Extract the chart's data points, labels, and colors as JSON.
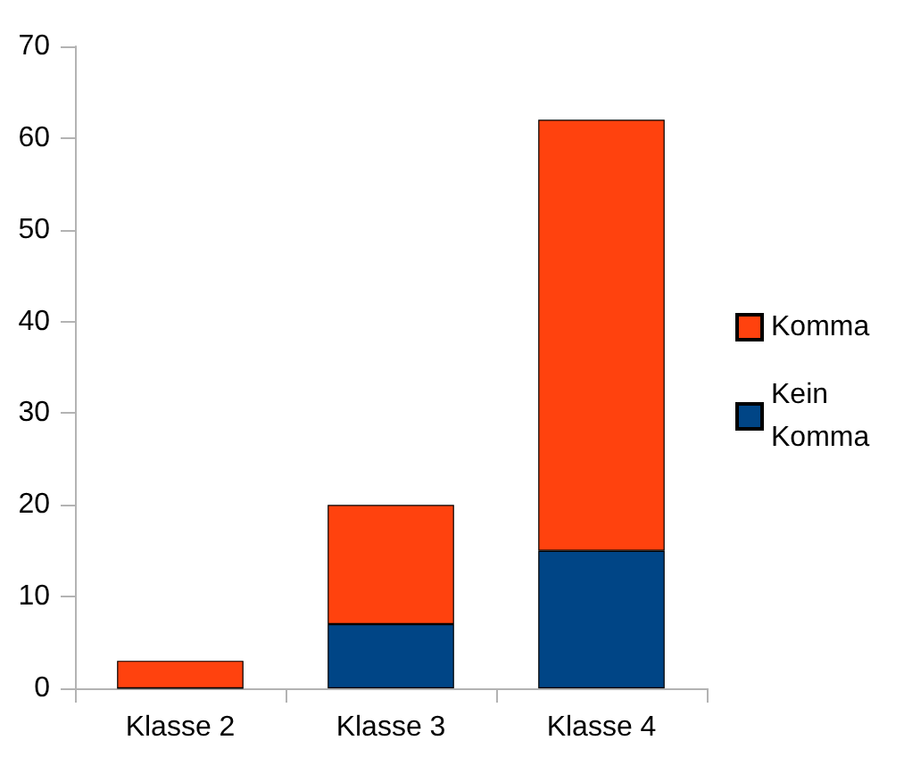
{
  "chart_data": {
    "type": "bar",
    "stacked": true,
    "categories": [
      "Klasse 2",
      "Klasse 3",
      "Klasse 4"
    ],
    "series": [
      {
        "name": "Kein Komma",
        "color": "#004586",
        "values": [
          0,
          7,
          15
        ]
      },
      {
        "name": "Komma",
        "color": "#ff420e",
        "values": [
          3,
          13,
          47
        ]
      }
    ],
    "ylim": [
      0,
      70
    ],
    "yticks": [
      0,
      10,
      20,
      30,
      40,
      50,
      60,
      70
    ],
    "grid": false,
    "legend": "right"
  }
}
